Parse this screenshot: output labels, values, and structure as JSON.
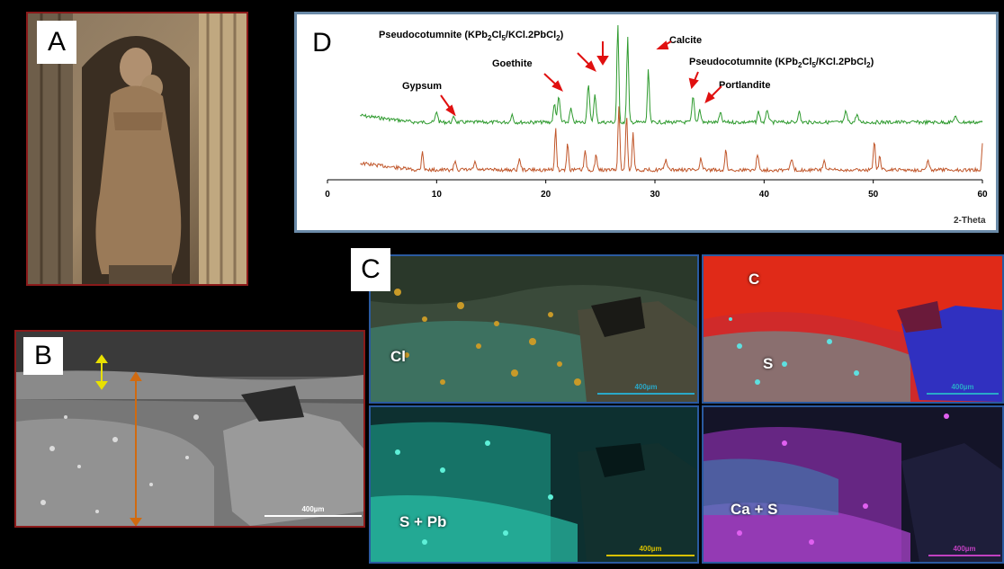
{
  "panels": {
    "A": {
      "letter": "A"
    },
    "B": {
      "letter": "B",
      "scale_label": "400µm"
    },
    "C": {
      "letter": "C"
    },
    "D": {
      "letter": "D"
    }
  },
  "maps": [
    {
      "label": "Cl",
      "scale_label": "400µm",
      "scale_color": "#2aa8c8"
    },
    {
      "label_top": "C",
      "label": "S",
      "scale_label": "400µm",
      "scale_color": "#2aa8c8"
    },
    {
      "label": "S + Pb",
      "scale_label": "400µm",
      "scale_color": "#d8c000"
    },
    {
      "label": "Ca + S",
      "scale_label": "400µm",
      "scale_color": "#c040c0"
    }
  ],
  "colors": {
    "panel_border_red": "#8b1a1a",
    "panel_border_blue": "#2a5aa0",
    "xrd_border": "#6a8aa8",
    "series_top": "#2e9a2e",
    "series_bottom": "#c0562a",
    "arrow": "#e01010",
    "thickness_arrow_yellow": "#e8e000",
    "thickness_arrow_orange": "#d06a10"
  },
  "xrd": {
    "x_axis_label": "2-Theta",
    "x_ticks": [
      "0",
      "10",
      "20",
      "30",
      "40",
      "50",
      "60"
    ],
    "annotations": {
      "gypsum": "Gypsum",
      "goethite": "Goethite",
      "pseudo1_prefix": "Pseudocotumnite (KPb",
      "pseudo1_sub1": "2",
      "pseudo1_mid": "Cl",
      "pseudo1_sub2": "5",
      "pseudo1_mid2": "/KCl.2PbCl",
      "pseudo1_sub3": "2",
      "pseudo1_suffix": ")",
      "calcite": "Calcite",
      "pseudo2_prefix": "Pseudocotumnite (KPb",
      "pseudo2_sub1": "2",
      "pseudo2_mid": "Cl",
      "pseudo2_sub2": "5",
      "pseudo2_mid2": "/KCl.2PbCl",
      "pseudo2_sub3": "2",
      "pseudo2_suffix": ")",
      "portlandite": "Portlandite"
    }
  }
}
